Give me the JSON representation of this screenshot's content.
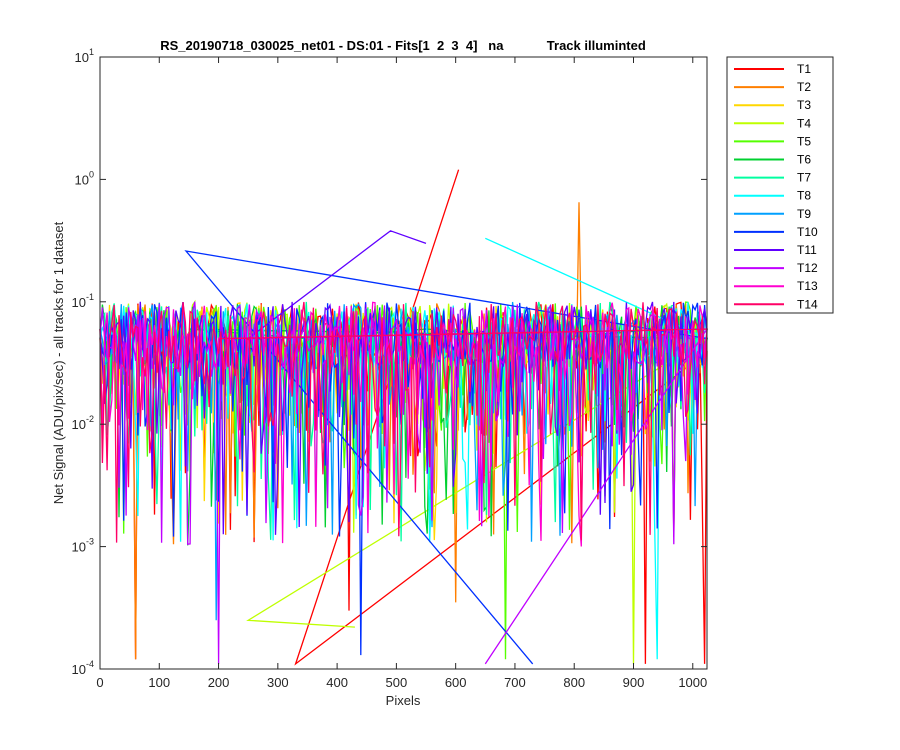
{
  "chart_data": {
    "type": "line",
    "title": "RS_20190718_030025_net01 - DS:01 - Fits[1  2  3  4]   na            Track illuminted",
    "xlabel": "Pixels",
    "ylabel": "Net Signal (ADU/pix/sec) - all tracks for 1 dataset",
    "xlim": [
      0,
      1024
    ],
    "ylim": [
      0.0001,
      10
    ],
    "yscale": "log",
    "x_ticks": [
      "0",
      "100",
      "200",
      "300",
      "400",
      "500",
      "600",
      "700",
      "800",
      "900",
      "1000"
    ],
    "y_ticks": [
      {
        "base": "10",
        "exp": "1"
      },
      {
        "base": "10",
        "exp": "0"
      },
      {
        "base": "10",
        "exp": "-1"
      },
      {
        "base": "10",
        "exp": "-2"
      },
      {
        "base": "10",
        "exp": "-3"
      },
      {
        "base": "10",
        "exp": "-4"
      }
    ],
    "grid": false,
    "legend_position": "outside-right",
    "series": [
      {
        "name": "T1",
        "color": "#ff0000",
        "x": [
          0,
          60,
          200,
          330,
          420,
          500,
          600,
          605,
          700,
          800,
          920,
          1020
        ],
        "y": [
          0.05,
          0.00012,
          0.06,
          0.00011,
          0.0003,
          0.06,
          0.05,
          1.2,
          0.05,
          0.04,
          0.00011,
          0.00011
        ]
      },
      {
        "name": "T2",
        "color": "#ff7f00",
        "x": [
          0,
          60,
          200,
          400,
          600,
          700,
          808,
          900,
          1024
        ],
        "y": [
          0.05,
          0.00012,
          0.05,
          0.06,
          0.00035,
          0.05,
          0.65,
          0.05,
          0.05
        ]
      },
      {
        "name": "T3",
        "color": "#ffd700",
        "x": [
          0,
          100,
          300,
          500,
          700,
          900,
          1024
        ],
        "y": [
          0.06,
          0.05,
          0.07,
          0.06,
          0.05,
          0.06,
          0.06
        ]
      },
      {
        "name": "T4",
        "color": "#bfff00",
        "x": [
          0,
          250,
          430,
          600,
          900,
          1024
        ],
        "y": [
          0.05,
          0.00025,
          0.00022,
          0.06,
          0.00011,
          0.05
        ]
      },
      {
        "name": "T5",
        "color": "#55ff00",
        "x": [
          0,
          200,
          400,
          684,
          900,
          1024
        ],
        "y": [
          0.06,
          0.05,
          0.06,
          0.00012,
          0.05,
          0.06
        ]
      },
      {
        "name": "T6",
        "color": "#00d030",
        "x": [
          0,
          150,
          350,
          550,
          750,
          950,
          1024
        ],
        "y": [
          0.05,
          0.06,
          0.05,
          0.06,
          0.05,
          0.06,
          0.05
        ]
      },
      {
        "name": "T7",
        "color": "#00ffa0",
        "x": [
          0,
          200,
          400,
          600,
          800,
          1024
        ],
        "y": [
          0.06,
          0.05,
          0.06,
          0.05,
          0.06,
          0.05
        ]
      },
      {
        "name": "T8",
        "color": "#00ffff",
        "x": [
          0,
          300,
          500,
          650,
          940,
          1024
        ],
        "y": [
          0.05,
          0.06,
          0.05,
          0.33,
          0.00012,
          0.05
        ]
      },
      {
        "name": "T9",
        "color": "#00a0ff",
        "x": [
          0,
          196,
          360,
          600,
          800,
          1024
        ],
        "y": [
          0.06,
          0.00025,
          0.05,
          0.06,
          0.05,
          0.06
        ]
      },
      {
        "name": "T10",
        "color": "#0030ff",
        "x": [
          0,
          145,
          440,
          730,
          900,
          1024
        ],
        "y": [
          0.05,
          0.26,
          0.00013,
          0.00011,
          0.06,
          0.05
        ]
      },
      {
        "name": "T11",
        "color": "#6000ff",
        "x": [
          0,
          250,
          490,
          550,
          700,
          1024
        ],
        "y": [
          0.06,
          0.05,
          0.38,
          0.3,
          0.05,
          0.06
        ]
      },
      {
        "name": "T12",
        "color": "#c000ff",
        "x": [
          0,
          200,
          400,
          650,
          800,
          1024
        ],
        "y": [
          0.05,
          0.00011,
          0.06,
          0.00011,
          0.05,
          0.06
        ]
      },
      {
        "name": "T13",
        "color": "#ff00d0",
        "x": [
          0,
          200,
          400,
          600,
          800,
          1024
        ],
        "y": [
          0.06,
          0.05,
          0.06,
          0.05,
          0.06,
          0.05
        ]
      },
      {
        "name": "T14",
        "color": "#ff0066",
        "x": [
          0,
          205,
          400,
          600,
          800,
          1024
        ],
        "y": [
          0.06,
          0.05,
          0.06,
          0.07,
          0.05,
          0.06
        ]
      }
    ]
  }
}
